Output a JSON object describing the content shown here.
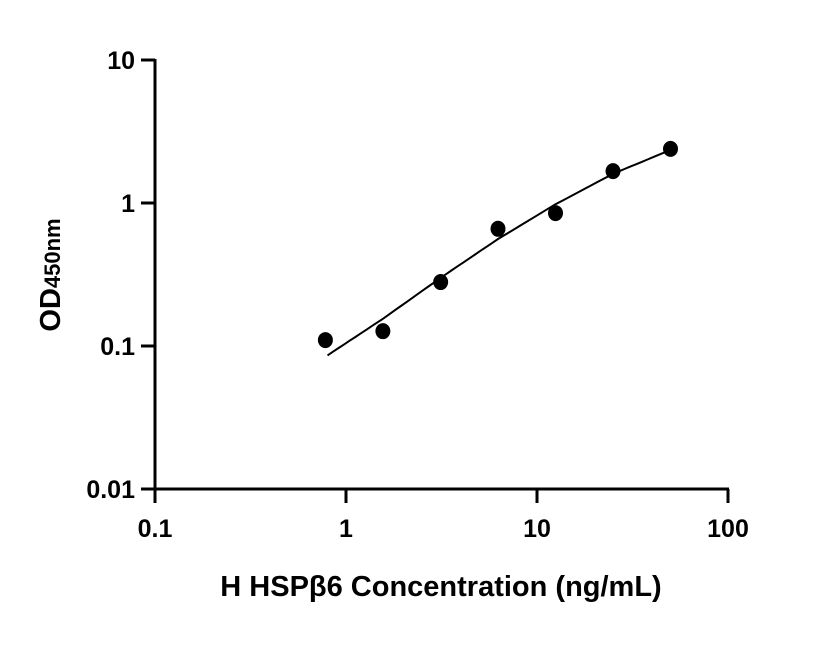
{
  "chart_data": {
    "type": "scatter",
    "xlabel": "H HSPβ6 Concentration (ng/mL)",
    "ylabel_main": "OD",
    "ylabel_sub": "450nm",
    "xscale": "log",
    "yscale": "log",
    "xlim": [
      0.1,
      100
    ],
    "ylim": [
      0.01,
      10
    ],
    "xticks": [
      "0.1",
      "1",
      "10",
      "100"
    ],
    "yticks": [
      "0.01",
      "0.1",
      "1",
      "10"
    ],
    "grid": false,
    "points": [
      {
        "x": 0.78,
        "y": 0.11
      },
      {
        "x": 1.56,
        "y": 0.127
      },
      {
        "x": 3.13,
        "y": 0.28
      },
      {
        "x": 6.25,
        "y": 0.66
      },
      {
        "x": 12.5,
        "y": 0.85
      },
      {
        "x": 25,
        "y": 1.67
      },
      {
        "x": 50,
        "y": 2.39
      }
    ],
    "fit_curve": [
      {
        "x": 0.8,
        "y": 0.086
      },
      {
        "x": 1.56,
        "y": 0.155
      },
      {
        "x": 3.13,
        "y": 0.3
      },
      {
        "x": 6.25,
        "y": 0.56
      },
      {
        "x": 12.5,
        "y": 0.98
      },
      {
        "x": 25,
        "y": 1.6
      },
      {
        "x": 50,
        "y": 2.35
      }
    ],
    "colors": {
      "marker": "#000000",
      "line": "#000000"
    }
  }
}
